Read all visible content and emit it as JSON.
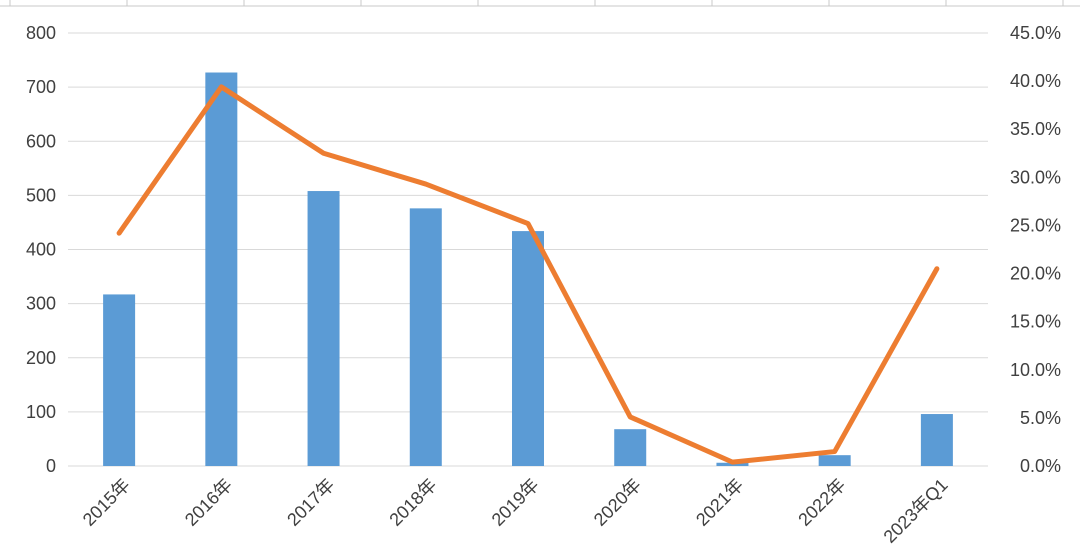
{
  "chart_data": {
    "type": "bar",
    "categories": [
      "2015年",
      "2016年",
      "2017年",
      "2018年",
      "2019年",
      "2020年",
      "2021年",
      "2022年",
      "2023年Q1"
    ],
    "series": [
      {
        "type": "bar",
        "axis": "left",
        "color": "#5b9bd5",
        "values": [
          317,
          727,
          508,
          476,
          434,
          68,
          6,
          20,
          96
        ]
      },
      {
        "type": "line",
        "axis": "right",
        "color": "#ed7d31",
        "values": [
          0.242,
          0.394,
          0.325,
          0.293,
          0.252,
          0.051,
          0.004,
          0.015,
          0.205
        ]
      }
    ],
    "y_left": {
      "ylim": [
        0,
        800
      ],
      "ticks": [
        "0",
        "100",
        "200",
        "300",
        "400",
        "500",
        "600",
        "700",
        "800"
      ]
    },
    "y_right": {
      "ylim": [
        0,
        0.45
      ],
      "ticks": [
        "0.0%",
        "5.0%",
        "10.0%",
        "15.0%",
        "20.0%",
        "25.0%",
        "30.0%",
        "35.0%",
        "40.0%",
        "45.0%"
      ]
    },
    "grid": true,
    "legend": "none"
  }
}
